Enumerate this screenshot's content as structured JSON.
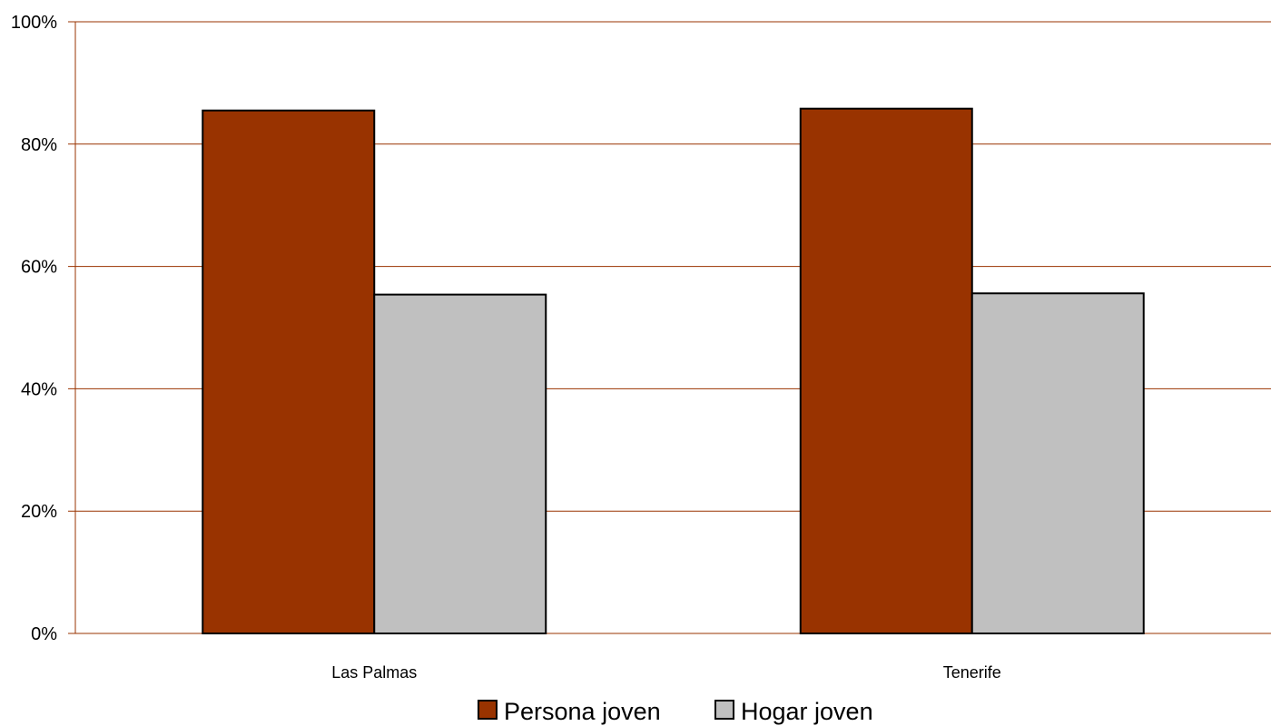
{
  "chart_data": {
    "type": "bar",
    "categories": [
      "Las Palmas",
      "Tenerife"
    ],
    "series": [
      {
        "name": "Persona joven",
        "values": [
          85.5,
          85.8
        ],
        "color": "#993300"
      },
      {
        "name": "Hogar joven",
        "values": [
          55.4,
          55.6
        ],
        "color": "#c0c0c0"
      }
    ],
    "ylim": [
      0,
      100
    ],
    "yticks": [
      0,
      20,
      40,
      60,
      80,
      100
    ],
    "ytick_suffix": "%",
    "grid": true,
    "grid_color": "#993300",
    "legend_position": "bottom",
    "title": "",
    "xlabel": "",
    "ylabel": ""
  }
}
